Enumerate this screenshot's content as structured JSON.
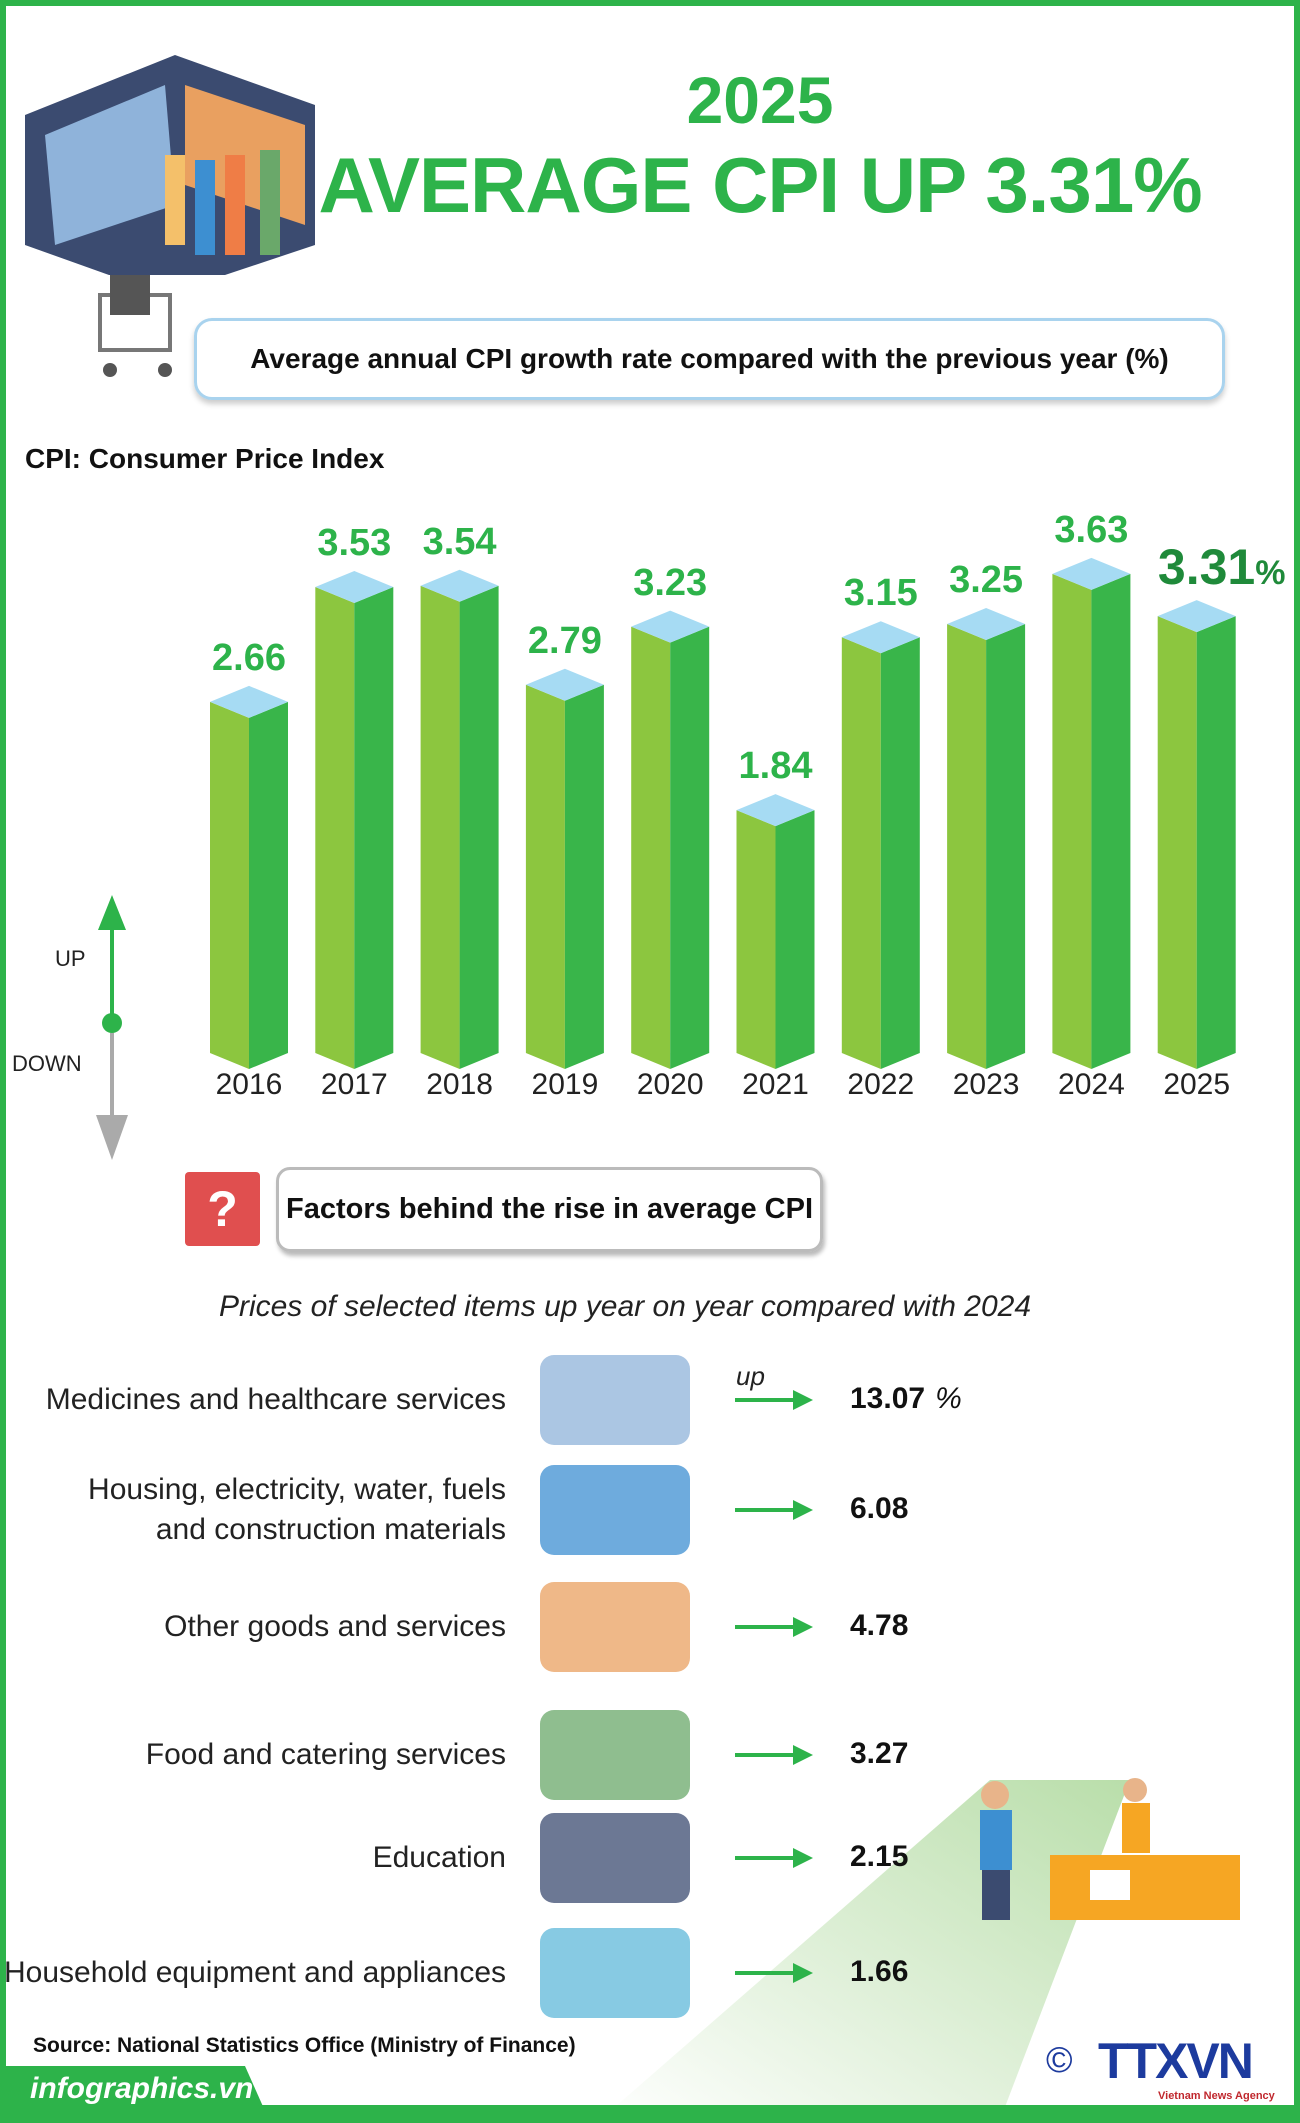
{
  "header": {
    "year": "2025",
    "headline": "AVERAGE CPI UP 3.31%",
    "subtitle": "Average annual CPI growth rate compared with the previous year (%)",
    "cpi_note": "CPI: Consumer Price Index"
  },
  "legend": {
    "up": "UP",
    "down": "DOWN"
  },
  "chart_data": {
    "type": "bar",
    "categories": [
      "2016",
      "2017",
      "2018",
      "2019",
      "2020",
      "2021",
      "2022",
      "2023",
      "2024",
      "2025"
    ],
    "values": [
      2.66,
      3.53,
      3.54,
      2.79,
      3.23,
      1.84,
      3.15,
      3.25,
      3.63,
      3.31
    ],
    "labels": [
      "2.66",
      "3.53",
      "3.54",
      "2.79",
      "3.23",
      "1.84",
      "3.15",
      "3.25",
      "3.63",
      "3.31"
    ],
    "highlight_unit": "%",
    "colors": {
      "left_face": "#8cc63f",
      "right_face": "#39b54a",
      "top": "#a6dbf3"
    }
  },
  "factors": {
    "icon": "question-mark-icon",
    "title": "Factors behind the rise in average CPI",
    "caption": "Prices of selected items up year on year compared with 2024",
    "up_label": "up",
    "unit": "%",
    "items": [
      {
        "label": "Medicines and healthcare services",
        "value": "13.07",
        "icon": "medicine-icon"
      },
      {
        "label": "Housing, electricity, water, fuels\nand construction materials",
        "value": "6.08",
        "icon": "socket-tap-icon"
      },
      {
        "label": "Other goods and services",
        "value": "4.78",
        "icon": "flower-pot-icon"
      },
      {
        "label": "Food and catering services",
        "value": "3.27",
        "icon": "food-plate-icon"
      },
      {
        "label": "Education",
        "value": "2.15",
        "icon": "graduation-cap-icon"
      },
      {
        "label": "Household equipment and appliances",
        "value": "1.66",
        "icon": "fridge-ac-icon"
      }
    ]
  },
  "footer": {
    "source": "Source: National Statistics Office (Ministry of Finance)",
    "site": "infographics.vn",
    "logo": "TTXVN",
    "agency": "Vietnam News Agency",
    "copyright": "©"
  },
  "colors": {
    "green": "#2db34a",
    "accent_red": "#e04f4f",
    "logo_blue": "#1d3b9e"
  }
}
